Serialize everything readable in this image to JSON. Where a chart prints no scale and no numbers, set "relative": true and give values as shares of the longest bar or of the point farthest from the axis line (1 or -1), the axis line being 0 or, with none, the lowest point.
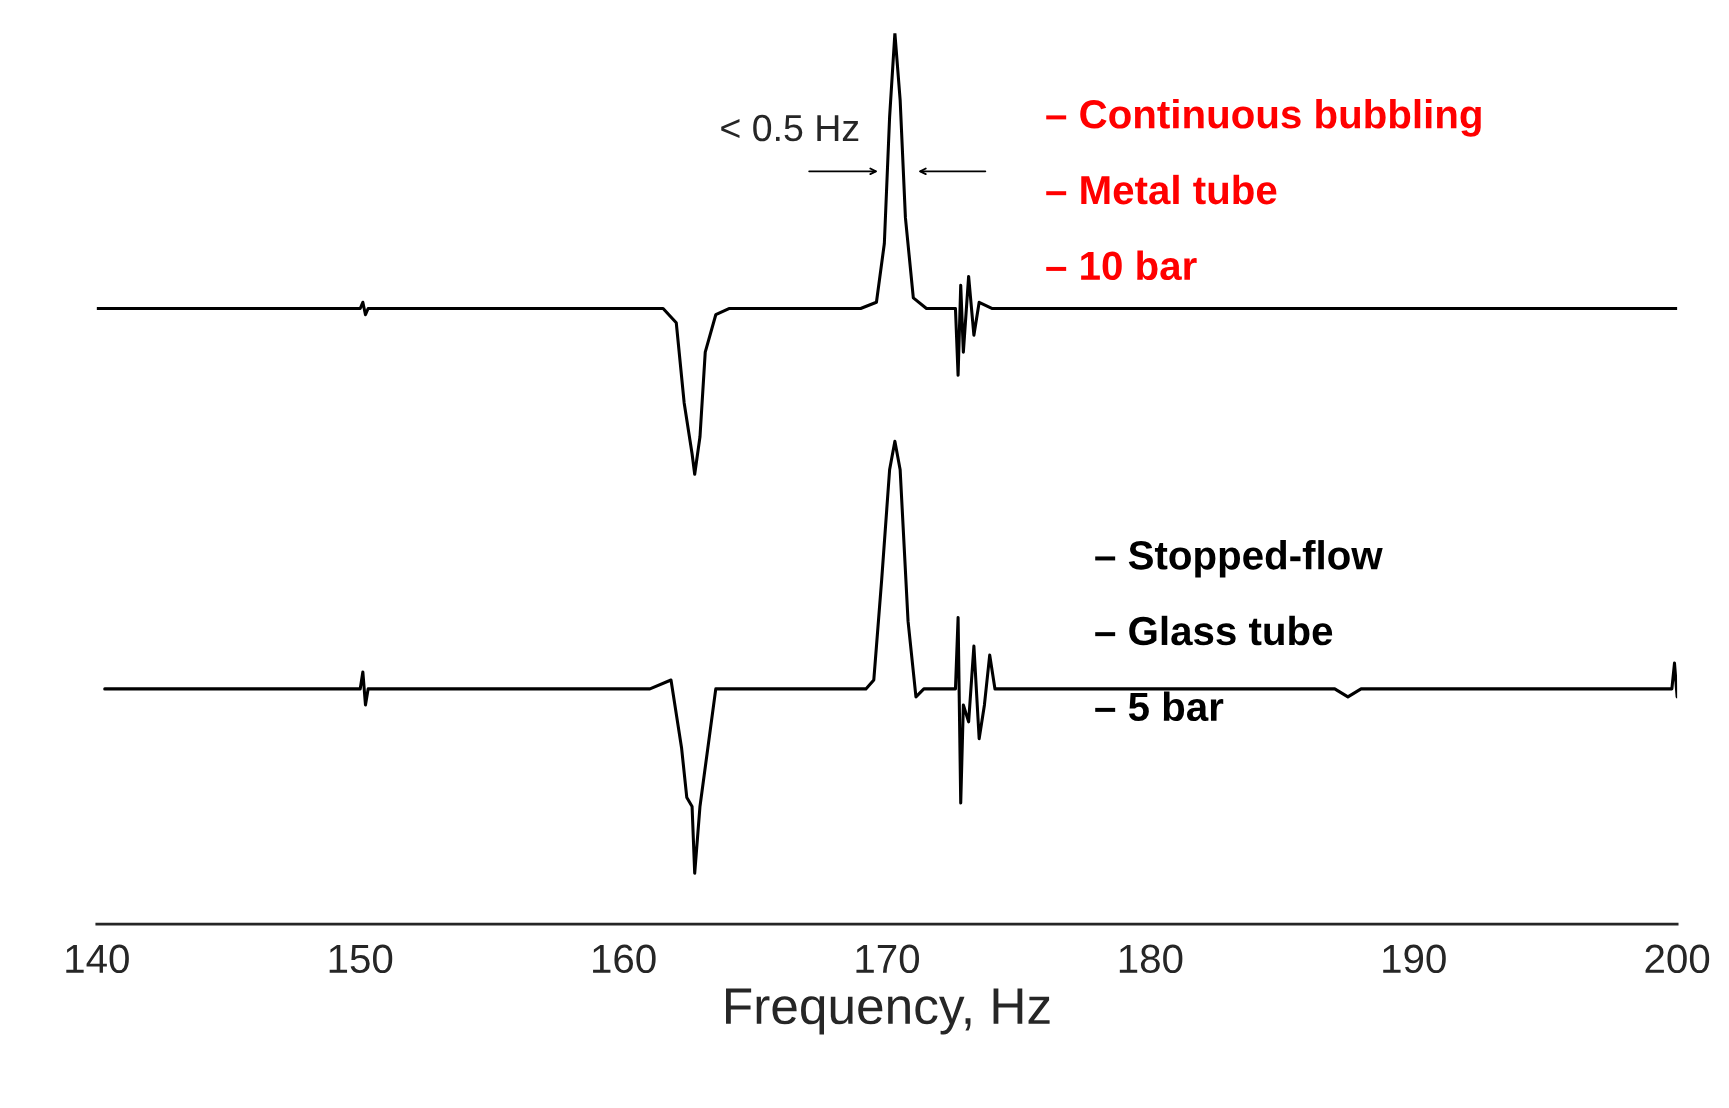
{
  "chart_data": {
    "type": "line",
    "relative": true,
    "xlabel": "Frequency, Hz",
    "xlim": [
      140,
      200
    ],
    "xticks": [
      140,
      150,
      160,
      170,
      180,
      190,
      200
    ],
    "grid": false,
    "legend": false,
    "marker": "none",
    "line_style": "solid",
    "series": [
      {
        "color": "#000000",
        "x": [
          140,
          150,
          150.1,
          150.2,
          150.3,
          161.5,
          162,
          162.3,
          162.6,
          162.7,
          162.9,
          163.1,
          163.5,
          164,
          169,
          169.6,
          169.9,
          170.1,
          170.3,
          170.5,
          170.7,
          171,
          171.5,
          172.6,
          172.7,
          172.8,
          172.9,
          173.1,
          173.3,
          173.5,
          174,
          200
        ],
        "values": [
          0.691,
          0.691,
          0.698,
          0.684,
          0.691,
          0.691,
          0.675,
          0.585,
          0.528,
          0.505,
          0.547,
          0.642,
          0.684,
          0.691,
          0.691,
          0.698,
          0.764,
          0.906,
          1.0,
          0.925,
          0.793,
          0.703,
          0.691,
          0.691,
          0.616,
          0.717,
          0.642,
          0.727,
          0.661,
          0.698,
          0.691,
          0.691
        ]
      },
      {
        "color": "#000000",
        "x": [
          140.3,
          150,
          150.1,
          150.2,
          150.3,
          161,
          161.8,
          162.2,
          162.4,
          162.6,
          162.7,
          162.9,
          163.2,
          163.5,
          169.2,
          169.5,
          169.8,
          170.1,
          170.3,
          170.5,
          170.8,
          171.1,
          171.4,
          172.6,
          172.7,
          172.8,
          172.9,
          173.1,
          173.3,
          173.5,
          173.7,
          173.9,
          174.1,
          187,
          187.5,
          188,
          199.8,
          199.9,
          200
        ],
        "values": [
          0.264,
          0.264,
          0.283,
          0.246,
          0.264,
          0.264,
          0.274,
          0.198,
          0.142,
          0.132,
          0.057,
          0.132,
          0.198,
          0.264,
          0.264,
          0.274,
          0.387,
          0.51,
          0.542,
          0.51,
          0.34,
          0.255,
          0.264,
          0.264,
          0.344,
          0.136,
          0.246,
          0.227,
          0.312,
          0.208,
          0.246,
          0.302,
          0.264,
          0.264,
          0.255,
          0.264,
          0.264,
          0.293,
          0.255
        ]
      }
    ],
    "annotations": [
      "< 0.5 Hz",
      "– Continuous bubbling",
      "– Metal tube",
      "– 10 bar",
      "– Stopped-flow",
      "– Glass tube",
      "– 5 bar"
    ]
  }
}
